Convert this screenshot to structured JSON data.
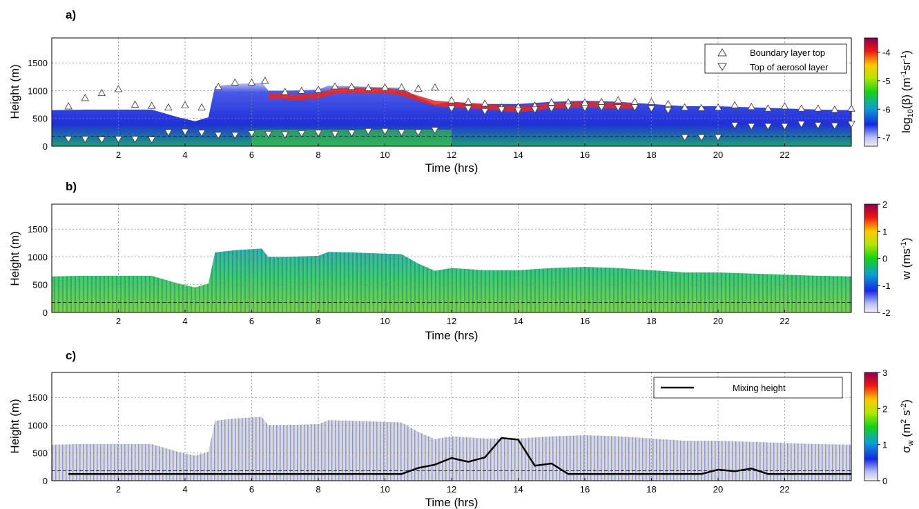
{
  "chart_data": [
    {
      "panel_label": "a)",
      "type": "heatmap",
      "xlabel": "Time (hrs)",
      "ylabel": "Height (m)",
      "xlim": [
        0,
        24
      ],
      "ylim": [
        0,
        1950
      ],
      "x_ticks": [
        2,
        4,
        6,
        8,
        10,
        12,
        14,
        16,
        18,
        20,
        22
      ],
      "y_ticks": [
        0,
        500,
        1000,
        1500
      ],
      "grid": true,
      "colorbar": {
        "label_main": "log",
        "label_sub": "10",
        "label_rest": "(β)  (m",
        "label_exp1": "-1",
        "label_mid": "sr",
        "label_exp2": "-1",
        "label_end": ")",
        "range": [
          -7.3,
          -3.5
        ],
        "ticks": [
          -4,
          -5,
          -6,
          -7
        ],
        "colormap": "jet"
      },
      "legend": {
        "position": "top-right",
        "entries": [
          {
            "label": "Boundary layer top",
            "marker": "triangle-up"
          },
          {
            "label": "Top of aerosol layer",
            "marker": "triangle-down"
          }
        ]
      },
      "series": [
        {
          "name": "Boundary layer top",
          "marker": "triangle-up",
          "x": [
            0.5,
            1.0,
            1.5,
            2.0,
            2.5,
            3.0,
            3.5,
            4.0,
            4.5,
            5.0,
            5.5,
            6.0,
            6.4,
            7.0,
            7.5,
            8.0,
            8.5,
            9.0,
            9.5,
            10.0,
            10.5,
            11.0,
            11.5,
            12.0,
            12.5,
            13.0,
            13.5,
            14.0,
            14.5,
            15.0,
            15.5,
            16.0,
            16.5,
            17.0,
            17.5,
            18.0,
            18.5,
            19.0,
            19.5,
            20.0,
            20.5,
            21.0,
            21.5,
            22.0,
            22.5,
            23.0,
            23.5,
            24.0
          ],
          "y": [
            720,
            870,
            960,
            1030,
            750,
            730,
            700,
            740,
            700,
            1070,
            1150,
            1150,
            1180,
            980,
            1000,
            1020,
            1080,
            1070,
            1050,
            1060,
            1060,
            1040,
            1060,
            830,
            800,
            770,
            700,
            710,
            730,
            790,
            790,
            790,
            800,
            830,
            800,
            800,
            760,
            700,
            690,
            700,
            740,
            710,
            680,
            720,
            680,
            680,
            660,
            680
          ]
        },
        {
          "name": "Top of aerosol layer",
          "marker": "triangle-down",
          "x": [
            0.5,
            1.0,
            1.5,
            2.0,
            2.5,
            3.0,
            3.5,
            4.0,
            4.5,
            5.0,
            5.5,
            6.0,
            6.5,
            7.0,
            7.5,
            8.0,
            8.5,
            9.0,
            9.5,
            10.0,
            10.5,
            11.0,
            11.5,
            12.0,
            12.5,
            13.0,
            13.5,
            14.0,
            14.5,
            15.0,
            15.5,
            16.0,
            16.5,
            17.0,
            17.5,
            18.0,
            18.5,
            19.0,
            19.5,
            20.0,
            20.5,
            21.0,
            21.5,
            22.0,
            22.5,
            23.0,
            23.5,
            24.0
          ],
          "y": [
            130,
            130,
            120,
            130,
            130,
            120,
            250,
            260,
            240,
            200,
            200,
            230,
            220,
            210,
            230,
            240,
            220,
            240,
            270,
            270,
            250,
            250,
            290,
            680,
            680,
            630,
            660,
            640,
            660,
            680,
            710,
            690,
            700,
            700,
            700,
            680,
            650,
            160,
            160,
            160,
            380,
            360,
            360,
            360,
            400,
            380,
            370,
            400
          ]
        }
      ],
      "reference_line": {
        "style": "dashed",
        "y": 180
      }
    },
    {
      "panel_label": "b)",
      "type": "heatmap",
      "xlabel": "Time (hrs)",
      "ylabel": "Height (m)",
      "xlim": [
        0,
        24
      ],
      "ylim": [
        0,
        1950
      ],
      "x_ticks": [
        2,
        4,
        6,
        8,
        10,
        12,
        14,
        16,
        18,
        20,
        22
      ],
      "y_ticks": [
        0,
        500,
        1000,
        1500
      ],
      "grid": true,
      "colorbar": {
        "label_main": "w  (ms",
        "label_exp": "-1",
        "label_end": ")",
        "range": [
          -2,
          2
        ],
        "ticks": [
          2,
          1,
          0,
          -1,
          -2
        ],
        "colormap": "jet"
      },
      "reference_line": {
        "style": "dashed",
        "y": 180
      }
    },
    {
      "panel_label": "c)",
      "type": "heatmap",
      "xlabel": "Time (hrs)",
      "ylabel": "Height (m)",
      "xlim": [
        0,
        24
      ],
      "ylim": [
        0,
        1950
      ],
      "x_ticks": [
        2,
        4,
        6,
        8,
        10,
        12,
        14,
        16,
        18,
        20,
        22
      ],
      "y_ticks": [
        0,
        500,
        1000,
        1500
      ],
      "grid": true,
      "colorbar": {
        "label_main": "σ",
        "label_sub": "w",
        "label_rest": "  (m",
        "label_exp1": "2",
        "label_mid": " s",
        "label_exp2": "-2",
        "label_end": ")",
        "range": [
          0,
          3
        ],
        "ticks": [
          3,
          2,
          1,
          0
        ],
        "colormap": "jet"
      },
      "legend": {
        "position": "top-right",
        "entries": [
          {
            "label": "Mixing height",
            "marker": "line"
          }
        ]
      },
      "series": [
        {
          "name": "Mixing height",
          "type": "line",
          "x": [
            0.5,
            10.5,
            11.0,
            11.5,
            12.0,
            12.5,
            13.0,
            13.5,
            14.0,
            14.5,
            15.0,
            15.5,
            16.0,
            19.5,
            20.0,
            20.5,
            21.0,
            21.5,
            24.0
          ],
          "y": [
            120,
            120,
            230,
            290,
            410,
            340,
            420,
            770,
            740,
            270,
            310,
            120,
            120,
            120,
            200,
            170,
            220,
            120,
            120
          ]
        }
      ],
      "reference_line": {
        "style": "dashed",
        "y": 180
      }
    }
  ]
}
